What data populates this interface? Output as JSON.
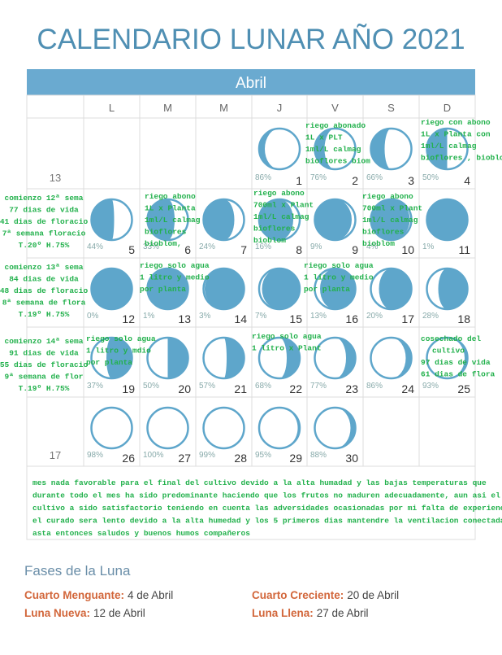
{
  "header": {
    "title": "CALENDARIO LUNAR AÑO 2021",
    "month": "Abril"
  },
  "weekdays": [
    "L",
    "M",
    "M",
    "J",
    "V",
    "S",
    "D"
  ],
  "weeks": [
    {
      "week": "13",
      "days": [
        null,
        null,
        null,
        {
          "day": "1",
          "pct": "86%"
        },
        {
          "day": "2",
          "pct": "76%"
        },
        {
          "day": "3",
          "pct": "66%"
        },
        {
          "day": "4",
          "pct": "50%"
        }
      ]
    },
    {
      "days": [
        {
          "day": "5",
          "pct": "44%"
        },
        {
          "day": "6",
          "pct": "33%"
        },
        {
          "day": "7",
          "pct": "24%"
        },
        {
          "day": "8",
          "pct": "16%"
        },
        {
          "day": "9",
          "pct": "9%"
        },
        {
          "day": "10",
          "pct": "4%"
        },
        {
          "day": "11",
          "pct": "1%"
        }
      ]
    },
    {
      "days": [
        {
          "day": "12",
          "pct": "0%"
        },
        {
          "day": "13",
          "pct": "1%"
        },
        {
          "day": "14",
          "pct": "3%"
        },
        {
          "day": "15",
          "pct": "7%"
        },
        {
          "day": "16",
          "pct": "13%"
        },
        {
          "day": "17",
          "pct": "20%"
        },
        {
          "day": "18",
          "pct": "28%"
        }
      ]
    },
    {
      "days": [
        {
          "day": "19",
          "pct": "37%"
        },
        {
          "day": "20",
          "pct": "50%"
        },
        {
          "day": "21",
          "pct": "57%"
        },
        {
          "day": "22",
          "pct": "68%"
        },
        {
          "day": "23",
          "pct": "77%"
        },
        {
          "day": "24",
          "pct": "86%"
        },
        {
          "day": "25",
          "pct": "93%"
        }
      ]
    },
    {
      "week": "17",
      "days": [
        {
          "day": "26",
          "pct": "98%"
        },
        {
          "day": "27",
          "pct": "100%"
        },
        {
          "day": "28",
          "pct": "99%"
        },
        {
          "day": "29",
          "pct": "95%"
        },
        {
          "day": "30",
          "pct": "88%"
        },
        null,
        null
      ]
    }
  ],
  "annotations": [
    {
      "lines": [
        "riego abonado",
        "1L x PLT",
        "1ml/L calmag",
        "bioflores biom"
      ]
    },
    {
      "lines": [
        "riego con abono",
        "1L x Planta con",
        "1ml/L calmag",
        "bioflores , bioblom"
      ]
    },
    {
      "lines": [
        "comienzo 12ª sema",
        "77 dias de vida",
        "41 dias de floracio",
        "7ª semana floracio",
        "T.20º H.75%"
      ]
    },
    {
      "lines": [
        "riego abono",
        "1L x Planta",
        "1ml/L calmag",
        "bioflores",
        "bioblom,"
      ]
    },
    {
      "lines": [
        "riego abono",
        "700ml x Plant",
        "1ml/L calmag",
        "bioflores",
        "bioblom"
      ]
    },
    {
      "lines": [
        "riego abono",
        "700ml x Plant",
        "1ml/L calmag",
        "bioflores",
        "bioblom"
      ]
    },
    {
      "lines": [
        "comienzo 13ª sema",
        "84 dias de vida",
        "48 dias de floracio",
        "8ª semana de flora",
        "T.19º H.75%"
      ]
    },
    {
      "lines": [
        "riego solo agua",
        "1 litro y medio",
        "por planta"
      ]
    },
    {
      "lines": [
        "riego solo agua",
        "1 litro y medio",
        "por planta"
      ]
    },
    {
      "lines": [
        "comienzo 14ª sema",
        "91 dias de vida",
        "55 dias de floracio",
        "9ª semana de flor",
        "T.19º H.75%"
      ]
    },
    {
      "lines": [
        "riego solo agua",
        "1 litro y mdio",
        "por planta"
      ]
    },
    {
      "lines": [
        "riego solo agua",
        "1 litro x Plant"
      ]
    },
    {
      "lines": [
        "cosechado del",
        "cultivo",
        "97 dias de vida",
        "61 dias de flora"
      ]
    }
  ],
  "note": [
    "mes nada favorable para el final del cultivo devido a la alta humadad y las bajas temperaturas que",
    "durante todo el mes ha sido predominante haciendo que los frutos no maduren adecuadamente, aun asi el",
    "cultivo a sido satisfactorio teniendo en cuenta las adversidades ocasionadas por mi falta de experiencia",
    "el curado sera lento devido a la alta humedad y los 5 primeros dias mantendre la ventilacion conectada,",
    "asta entonces saludos y buenos humos compañeros"
  ],
  "phases": {
    "title": "Fases de la Luna",
    "items": [
      {
        "label": "Cuarto Menguante:",
        "date": "4 de Abril"
      },
      {
        "label": "Cuarto Creciente:",
        "date": "20 de Abril"
      },
      {
        "label": "Luna Nueva:",
        "date": "12 de Abril"
      },
      {
        "label": "Luna Llena:",
        "date": "27 de Abril"
      }
    ]
  }
}
